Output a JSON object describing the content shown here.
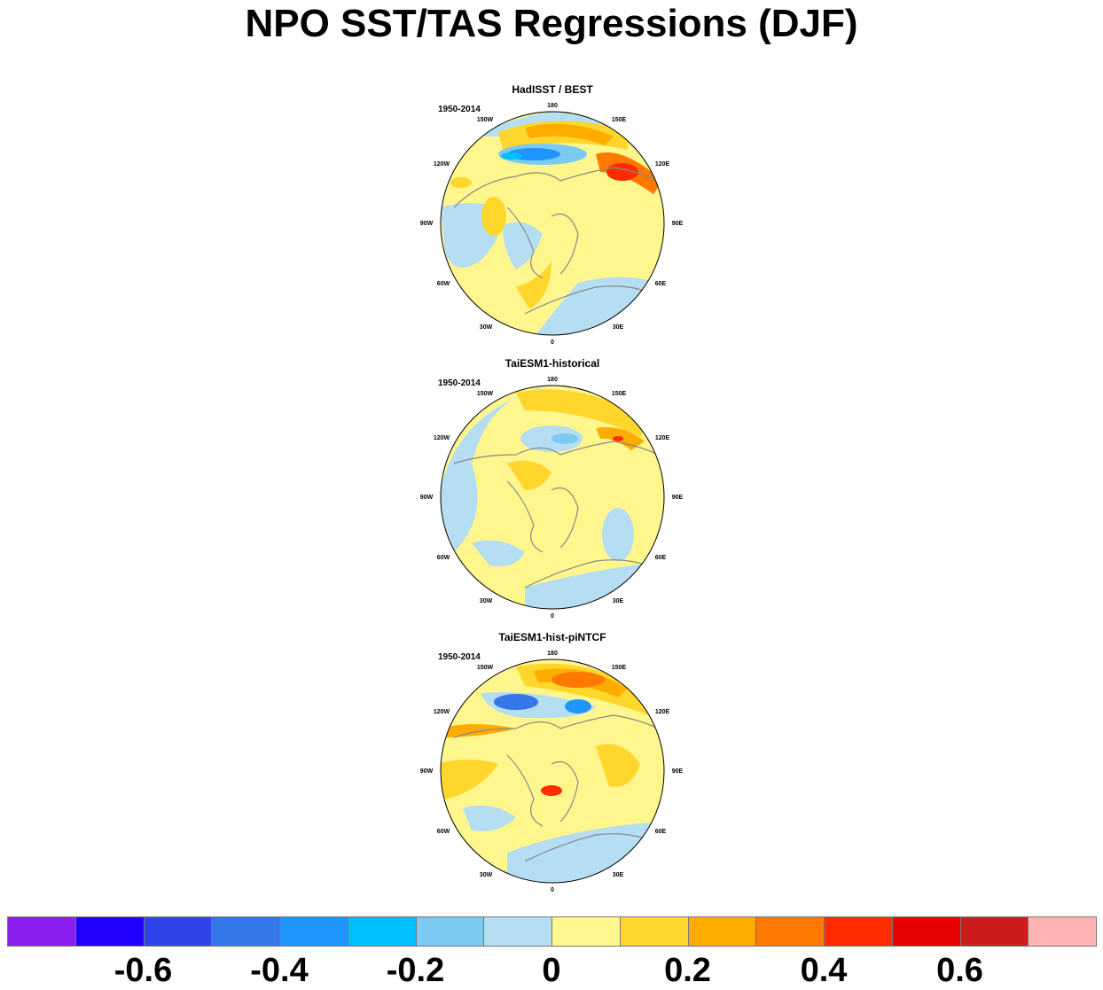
{
  "title": "NPO SST/TAS Regressions (DJF)",
  "panels": [
    {
      "title": "HadISST / BEST",
      "period": "1950-2014"
    },
    {
      "title": "TaiESM1-historical",
      "period": "1950-2014"
    },
    {
      "title": "TaiESM1-hist-piNTCF",
      "period": "1950-2014"
    }
  ],
  "longitude_labels": [
    "180",
    "150E",
    "120E",
    "90E",
    "60E",
    "30E",
    "0",
    "30W",
    "60W",
    "90W",
    "120W",
    "150W"
  ],
  "colorbar": {
    "colors": [
      "#8a1fef",
      "#1f00ff",
      "#2f44e9",
      "#3577e8",
      "#1f95ff",
      "#00bfff",
      "#7ccaf2",
      "#b5def2",
      "#fff68e",
      "#ffd62c",
      "#ffac00",
      "#ff7800",
      "#ff2c00",
      "#e60000",
      "#cc1c1c",
      "#ffb3b3"
    ],
    "tick_labels": [
      "-0.6",
      "-0.4",
      "-0.2",
      "0",
      "0.2",
      "0.4",
      "0.6"
    ]
  }
}
